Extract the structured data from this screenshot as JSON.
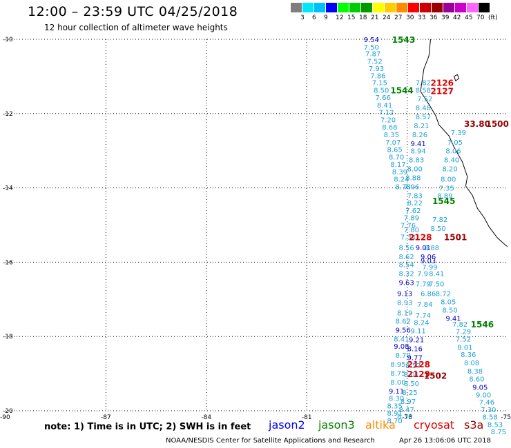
{
  "header": {
    "title": "12:00 – 23:59 UTC 04/25/2018",
    "subtitle": "12 hour collection of altimeter wave heights"
  },
  "color_scale": {
    "colors": [
      "#7f7f7f",
      "#00e6ff",
      "#00bfff",
      "#0000ff",
      "#00ff00",
      "#00cc00",
      "#009900",
      "#ffff00",
      "#ffcc00",
      "#ff8c00",
      "#ff0000",
      "#cc0000",
      "#990000",
      "#990099",
      "#cc00cc",
      "#ff66ff",
      "#000000"
    ],
    "labels": [
      "3",
      "6",
      "9",
      "12",
      "15",
      "18",
      "21",
      "24",
      "27",
      "30",
      "33",
      "36",
      "39",
      "42",
      "45",
      "70",
      "(ft)"
    ]
  },
  "chart_data": {
    "type": "map",
    "x_range": [
      -90,
      -75
    ],
    "y_range": [
      -20,
      -10
    ],
    "x_tick_labels": [
      "-90",
      "-87",
      "-84",
      "-81",
      "-78",
      "-75"
    ],
    "y_tick_labels": [
      "-10",
      "-12",
      "-14",
      "-16",
      "-18",
      "-20"
    ],
    "grid": true,
    "cyan_color": "#1e9fd8",
    "blue_color": "#0000cc",
    "readings": [
      {
        "v": "9.54",
        "lon": -79.3,
        "lat": -10.0,
        "c": "blue"
      },
      {
        "v": "7.50",
        "lon": -79.3,
        "lat": -10.2,
        "c": "cyan"
      },
      {
        "v": "7.87",
        "lon": -79.25,
        "lat": -10.38,
        "c": "cyan"
      },
      {
        "v": "7.52",
        "lon": -79.2,
        "lat": -10.58,
        "c": "cyan"
      },
      {
        "v": "7.93",
        "lon": -79.15,
        "lat": -10.78,
        "c": "cyan"
      },
      {
        "v": "7.86",
        "lon": -79.1,
        "lat": -10.97,
        "c": "cyan"
      },
      {
        "v": "7.15",
        "lon": -79.05,
        "lat": -11.16,
        "c": "cyan"
      },
      {
        "v": "8.50",
        "lon": -79.0,
        "lat": -11.36,
        "c": "cyan"
      },
      {
        "v": "7.66",
        "lon": -78.95,
        "lat": -11.56,
        "c": "cyan"
      },
      {
        "v": "8.41",
        "lon": -78.9,
        "lat": -11.76,
        "c": "cyan"
      },
      {
        "v": "7.12",
        "lon": -78.85,
        "lat": -11.96,
        "c": "cyan"
      },
      {
        "v": "7.20",
        "lon": -78.8,
        "lat": -12.16,
        "c": "cyan"
      },
      {
        "v": "8.68",
        "lon": -78.75,
        "lat": -12.36,
        "c": "cyan"
      },
      {
        "v": "8.35",
        "lon": -78.7,
        "lat": -12.56,
        "c": "cyan"
      },
      {
        "v": "7.07",
        "lon": -78.65,
        "lat": -12.76,
        "c": "cyan"
      },
      {
        "v": "8.65",
        "lon": -78.6,
        "lat": -12.96,
        "c": "cyan"
      },
      {
        "v": "8.70",
        "lon": -78.55,
        "lat": -13.16,
        "c": "cyan"
      },
      {
        "v": "8.17",
        "lon": -78.5,
        "lat": -13.36,
        "c": "cyan"
      },
      {
        "v": "8.39",
        "lon": -78.45,
        "lat": -13.56,
        "c": "cyan"
      },
      {
        "v": "8.24",
        "lon": -78.4,
        "lat": -13.76,
        "c": "cyan"
      },
      {
        "v": "8.78",
        "lon": -78.35,
        "lat": -13.96,
        "c": "cyan"
      },
      {
        "v": "7.82",
        "lon": -77.75,
        "lat": -11.16,
        "c": "cyan"
      },
      {
        "v": "8.58",
        "lon": -77.75,
        "lat": -11.36,
        "c": "cyan"
      },
      {
        "v": "7.52",
        "lon": -77.7,
        "lat": -11.6,
        "c": "cyan"
      },
      {
        "v": "8.48",
        "lon": -77.75,
        "lat": -11.84,
        "c": "cyan"
      },
      {
        "v": "8.57",
        "lon": -77.75,
        "lat": -12.08,
        "c": "cyan"
      },
      {
        "v": "8.21",
        "lon": -77.8,
        "lat": -12.32,
        "c": "cyan"
      },
      {
        "v": "8.26",
        "lon": -77.85,
        "lat": -12.56,
        "c": "cyan"
      },
      {
        "v": "9.41",
        "lon": -77.9,
        "lat": -12.8,
        "c": "blue"
      },
      {
        "v": "8.94",
        "lon": -77.9,
        "lat": -13.0,
        "c": "cyan"
      },
      {
        "v": "8.83",
        "lon": -77.95,
        "lat": -13.24,
        "c": "cyan"
      },
      {
        "v": "8.00",
        "lon": -78.0,
        "lat": -13.48,
        "c": "cyan"
      },
      {
        "v": "8.88",
        "lon": -78.05,
        "lat": -13.72,
        "c": "cyan"
      },
      {
        "v": "7.96",
        "lon": -78.1,
        "lat": -13.96,
        "c": "cyan"
      },
      {
        "v": "7.39",
        "lon": -76.7,
        "lat": -12.5,
        "c": "cyan"
      },
      {
        "v": "7.05",
        "lon": -76.8,
        "lat": -12.76,
        "c": "cyan"
      },
      {
        "v": "8.06",
        "lon": -76.85,
        "lat": -13.0,
        "c": "cyan"
      },
      {
        "v": "8.40",
        "lon": -76.9,
        "lat": -13.24,
        "c": "cyan"
      },
      {
        "v": "8.20",
        "lon": -76.95,
        "lat": -13.48,
        "c": "cyan"
      },
      {
        "v": "8.00",
        "lon": -77.0,
        "lat": -13.76,
        "c": "cyan"
      },
      {
        "v": "7.35",
        "lon": -77.05,
        "lat": -14.0,
        "c": "cyan"
      },
      {
        "v": "8.89",
        "lon": -77.1,
        "lat": -14.2,
        "c": "cyan"
      },
      {
        "v": "7.82",
        "lon": -77.25,
        "lat": -14.84,
        "c": "cyan"
      },
      {
        "v": "8.50",
        "lon": -77.3,
        "lat": -15.08,
        "c": "cyan"
      },
      {
        "v": "7.83",
        "lon": -78.0,
        "lat": -14.2,
        "c": "cyan"
      },
      {
        "v": "8.22",
        "lon": -78.0,
        "lat": -14.4,
        "c": "cyan"
      },
      {
        "v": "7.62",
        "lon": -78.05,
        "lat": -14.6,
        "c": "cyan"
      },
      {
        "v": "7.89",
        "lon": -78.1,
        "lat": -14.8,
        "c": "cyan"
      },
      {
        "v": "7.76",
        "lon": -78.2,
        "lat": -15.0,
        "c": "cyan"
      },
      {
        "v": "7.80",
        "lon": -78.1,
        "lat": -15.12,
        "c": "cyan"
      },
      {
        "v": "7.34",
        "lon": -78.2,
        "lat": -15.32,
        "c": "cyan"
      },
      {
        "v": "9.01",
        "lon": -77.75,
        "lat": -15.6,
        "c": "blue"
      },
      {
        "v": "8.88",
        "lon": -77.5,
        "lat": -15.6,
        "c": "cyan"
      },
      {
        "v": "8.56",
        "lon": -78.25,
        "lat": -15.6,
        "c": "cyan"
      },
      {
        "v": "9.06",
        "lon": -77.6,
        "lat": -15.84,
        "c": "blue"
      },
      {
        "v": "8.62",
        "lon": -78.25,
        "lat": -15.84,
        "c": "cyan"
      },
      {
        "v": "9.03",
        "lon": -77.6,
        "lat": -15.96,
        "c": "blue"
      },
      {
        "v": "8.54",
        "lon": -78.25,
        "lat": -16.06,
        "c": "cyan"
      },
      {
        "v": "7.99",
        "lon": -77.55,
        "lat": -16.12,
        "c": "cyan"
      },
      {
        "v": "8.32",
        "lon": -78.25,
        "lat": -16.3,
        "c": "cyan"
      },
      {
        "v": "7.9",
        "lon": -77.7,
        "lat": -16.3,
        "c": "cyan"
      },
      {
        "v": "8.41",
        "lon": -77.35,
        "lat": -16.3,
        "c": "cyan"
      },
      {
        "v": "9.63",
        "lon": -78.25,
        "lat": -16.54,
        "c": "blue"
      },
      {
        "v": "7.79",
        "lon": -77.75,
        "lat": -16.58,
        "c": "cyan"
      },
      {
        "v": "7.50",
        "lon": -77.35,
        "lat": -16.58,
        "c": "cyan"
      },
      {
        "v": "9.13",
        "lon": -78.3,
        "lat": -16.84,
        "c": "blue"
      },
      {
        "v": "6.86",
        "lon": -77.6,
        "lat": -16.84,
        "c": "cyan"
      },
      {
        "v": "8.72",
        "lon": -77.15,
        "lat": -16.84,
        "c": "cyan"
      },
      {
        "v": "8.93",
        "lon": -78.3,
        "lat": -17.08,
        "c": "cyan"
      },
      {
        "v": "7.84",
        "lon": -77.7,
        "lat": -17.12,
        "c": "cyan"
      },
      {
        "v": "8.05",
        "lon": -77.0,
        "lat": -17.06,
        "c": "cyan"
      },
      {
        "v": "8.19",
        "lon": -78.3,
        "lat": -17.36,
        "c": "cyan"
      },
      {
        "v": "7.74",
        "lon": -77.75,
        "lat": -17.42,
        "c": "cyan"
      },
      {
        "v": "8.50",
        "lon": -76.95,
        "lat": -17.28,
        "c": "cyan"
      },
      {
        "v": "9.41",
        "lon": -76.85,
        "lat": -17.5,
        "c": "blue"
      },
      {
        "v": "8.62",
        "lon": -78.35,
        "lat": -17.58,
        "c": "cyan"
      },
      {
        "v": "8.24",
        "lon": -77.8,
        "lat": -17.62,
        "c": "cyan"
      },
      {
        "v": "7.82",
        "lon": -76.65,
        "lat": -17.66,
        "c": "cyan"
      },
      {
        "v": "9.56",
        "lon": -78.35,
        "lat": -17.82,
        "c": "blue"
      },
      {
        "v": "9.11",
        "lon": -77.9,
        "lat": -17.84,
        "c": "cyan"
      },
      {
        "v": "7.29",
        "lon": -76.55,
        "lat": -17.86,
        "c": "cyan"
      },
      {
        "v": "8.41",
        "lon": -78.4,
        "lat": -18.06,
        "c": "cyan"
      },
      {
        "v": "9.21",
        "lon": -77.95,
        "lat": -18.08,
        "c": "blue"
      },
      {
        "v": "7.52",
        "lon": -76.55,
        "lat": -18.06,
        "c": "cyan"
      },
      {
        "v": "9.08",
        "lon": -78.4,
        "lat": -18.26,
        "c": "blue"
      },
      {
        "v": "8.16",
        "lon": -78.0,
        "lat": -18.32,
        "c": "blue"
      },
      {
        "v": "8.01",
        "lon": -76.5,
        "lat": -18.28,
        "c": "cyan"
      },
      {
        "v": "8.70",
        "lon": -78.35,
        "lat": -18.5,
        "c": "cyan"
      },
      {
        "v": "8.36",
        "lon": -76.4,
        "lat": -18.48,
        "c": "cyan"
      },
      {
        "v": "9.77",
        "lon": -78.0,
        "lat": -18.56,
        "c": "blue"
      },
      {
        "v": "8.08",
        "lon": -76.3,
        "lat": -18.7,
        "c": "cyan"
      },
      {
        "v": "8.95",
        "lon": -78.5,
        "lat": -18.74,
        "c": "cyan"
      },
      {
        "v": "8.57",
        "lon": -78.05,
        "lat": -18.78,
        "c": "cyan"
      },
      {
        "v": "8.38",
        "lon": -76.2,
        "lat": -18.92,
        "c": "cyan"
      },
      {
        "v": "8.75",
        "lon": -78.5,
        "lat": -18.98,
        "c": "cyan"
      },
      {
        "v": "8.01",
        "lon": -78.1,
        "lat": -19.02,
        "c": "cyan"
      },
      {
        "v": "8.60",
        "lon": -76.15,
        "lat": -19.14,
        "c": "cyan"
      },
      {
        "v": "8.00",
        "lon": -78.5,
        "lat": -19.22,
        "c": "cyan"
      },
      {
        "v": "8.50",
        "lon": -78.1,
        "lat": -19.26,
        "c": "cyan"
      },
      {
        "v": "9.05",
        "lon": -76.05,
        "lat": -19.36,
        "c": "blue"
      },
      {
        "v": "9.11",
        "lon": -78.55,
        "lat": -19.46,
        "c": "blue"
      },
      {
        "v": "8.25",
        "lon": -78.15,
        "lat": -19.5,
        "c": "cyan"
      },
      {
        "v": "9.00",
        "lon": -75.95,
        "lat": -19.56,
        "c": "cyan"
      },
      {
        "v": "8.30",
        "lon": -78.55,
        "lat": -19.66,
        "c": "cyan"
      },
      {
        "v": "8.97",
        "lon": -78.2,
        "lat": -19.74,
        "c": "cyan"
      },
      {
        "v": "7.46",
        "lon": -75.85,
        "lat": -19.76,
        "c": "cyan"
      },
      {
        "v": "8.35",
        "lon": -78.6,
        "lat": -19.86,
        "c": "cyan"
      },
      {
        "v": "8.47",
        "lon": -78.25,
        "lat": -19.96,
        "c": "cyan"
      },
      {
        "v": "7.30",
        "lon": -75.8,
        "lat": -19.96,
        "c": "cyan"
      },
      {
        "v": "8.91",
        "lon": -78.6,
        "lat": -20.06,
        "c": "cyan"
      },
      {
        "v": "8.36",
        "lon": -78.3,
        "lat": -20.14,
        "c": "cyan"
      },
      {
        "v": "8.58",
        "lon": -75.75,
        "lat": -20.16,
        "c": "cyan"
      },
      {
        "v": "8.70",
        "lon": -78.6,
        "lat": -20.26,
        "c": "cyan"
      },
      {
        "v": "8.53",
        "lon": -75.6,
        "lat": -20.36,
        "c": "cyan"
      },
      {
        "v": "8.75",
        "lon": -75.5,
        "lat": -20.56,
        "c": "cyan"
      }
    ],
    "pass_labels": [
      {
        "v": "1543",
        "lon": -78.45,
        "lat": -10.0,
        "c": "#008000"
      },
      {
        "v": "2126",
        "lon": -77.3,
        "lat": -11.16,
        "c": "#dd0000"
      },
      {
        "v": "2127",
        "lon": -77.3,
        "lat": -11.38,
        "c": "#dd0000"
      },
      {
        "v": "1544",
        "lon": -78.5,
        "lat": -11.36,
        "c": "#008000"
      },
      {
        "v": "33.80",
        "lon": -76.3,
        "lat": -12.26,
        "c": "#990000"
      },
      {
        "v": "1500",
        "lon": -75.65,
        "lat": -12.26,
        "c": "#990000"
      },
      {
        "v": "1545",
        "lon": -77.25,
        "lat": -14.34,
        "c": "#008000"
      },
      {
        "v": "2128",
        "lon": -77.95,
        "lat": -15.32,
        "c": "#dd0000"
      },
      {
        "v": "1501",
        "lon": -76.9,
        "lat": -15.32,
        "c": "#990000"
      },
      {
        "v": "1546",
        "lon": -76.1,
        "lat": -17.66,
        "c": "#008000"
      },
      {
        "v": "2128",
        "lon": -78.0,
        "lat": -18.74,
        "c": "#dd0000"
      },
      {
        "v": "2129",
        "lon": -78.0,
        "lat": -19.0,
        "c": "#dd0000"
      },
      {
        "v": "1502",
        "lon": -77.5,
        "lat": -19.04,
        "c": "#990000"
      }
    ],
    "coastline": [
      [
        -77.3,
        -10.0
      ],
      [
        -77.35,
        -10.45
      ],
      [
        -77.5,
        -10.8
      ],
      [
        -77.55,
        -11.1
      ],
      [
        -77.6,
        -11.4
      ],
      [
        -77.35,
        -11.75
      ],
      [
        -77.15,
        -12.05
      ],
      [
        -77.05,
        -12.3
      ],
      [
        -76.75,
        -12.6
      ],
      [
        -76.6,
        -12.9
      ],
      [
        -76.35,
        -13.3
      ],
      [
        -76.2,
        -13.7
      ],
      [
        -76.25,
        -13.95
      ],
      [
        -76.05,
        -14.2
      ],
      [
        -75.9,
        -14.55
      ],
      [
        -75.7,
        -14.8
      ],
      [
        -75.55,
        -15.05
      ],
      [
        -75.3,
        -15.35
      ],
      [
        -75.05,
        -15.55
      ],
      [
        -75.0,
        -15.58
      ]
    ],
    "island": [
      [
        -76.6,
        -11.0
      ],
      [
        -76.5,
        -10.95
      ],
      [
        -76.45,
        -11.05
      ],
      [
        -76.55,
        -11.12
      ],
      [
        -76.6,
        -11.0
      ]
    ]
  },
  "footer": {
    "note": "note: 1) Time is in UTC; 2) SWH is in feet",
    "satellites": [
      {
        "name": "jason2",
        "color": "#0000ee"
      },
      {
        "name": "jason3",
        "color": "#008000"
      },
      {
        "name": "altika",
        "color": "#ff8c00"
      },
      {
        "name": "cryosat",
        "color": "#dd0000"
      },
      {
        "name": "s3a",
        "color": "#990000"
      }
    ],
    "credit": "NOAA/NESDIS Center for Satellite Applications and Research",
    "timestamp": "Apr 26 13:06:06 UTC 2018"
  }
}
